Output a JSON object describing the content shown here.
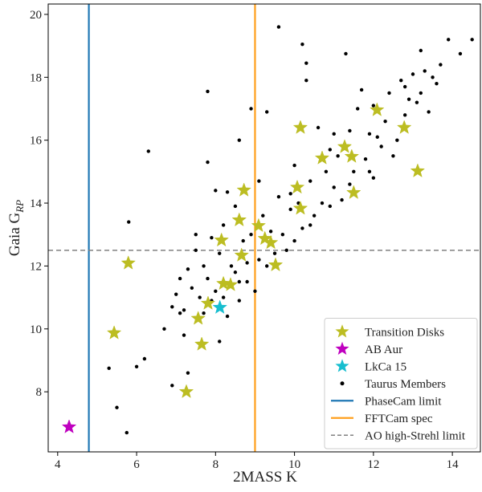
{
  "chart_data": {
    "type": "scatter",
    "xlabel": "2MASS K",
    "ylabel": "Gaia G",
    "ylabel_sub": "RP",
    "xlim": [
      3.76,
      14.71
    ],
    "ylim": [
      6.09,
      20.33
    ],
    "xticks": [
      4,
      6,
      8,
      10,
      12,
      14
    ],
    "yticks": [
      8,
      10,
      12,
      14,
      16,
      18,
      20
    ],
    "legend": "lower right",
    "series": [
      {
        "name": "Transition Disks",
        "color": "#bcbd22",
        "marker": "star",
        "x": [
          5.79,
          5.43,
          7.26,
          7.65,
          7.56,
          7.81,
          8.15,
          8.2,
          8.38,
          8.6,
          8.66,
          8.72,
          9.09,
          9.25,
          9.4,
          9.52,
          10.07,
          10.15,
          10.15,
          10.7,
          11.27,
          11.45,
          11.5,
          12.09,
          12.78,
          13.12
        ],
        "y": [
          12.09,
          9.87,
          8.0,
          9.51,
          10.33,
          10.81,
          12.82,
          11.44,
          11.4,
          13.46,
          12.34,
          14.41,
          13.28,
          12.87,
          12.74,
          12.03,
          14.5,
          13.83,
          16.4,
          15.43,
          15.79,
          15.48,
          14.33,
          16.96,
          16.4,
          15.02
        ]
      },
      {
        "name": "AB Aur",
        "color": "#bf00bf",
        "marker": "star",
        "x": [
          4.29
        ],
        "y": [
          6.88
        ]
      },
      {
        "name": "LkCa 15",
        "color": "#17becf",
        "marker": "star",
        "x": [
          8.11
        ],
        "y": [
          10.68
        ]
      },
      {
        "name": "Taurus Members",
        "color": "#000000",
        "marker": "dot",
        "x": [
          5.3,
          5.5,
          5.75,
          5.8,
          6.0,
          6.2,
          6.3,
          6.7,
          6.9,
          6.9,
          7.0,
          7.1,
          7.1,
          7.2,
          7.3,
          7.3,
          7.4,
          7.5,
          7.5,
          7.6,
          7.7,
          7.7,
          7.8,
          7.8,
          7.8,
          7.9,
          8.0,
          8.0,
          8.1,
          8.1,
          8.2,
          8.2,
          8.3,
          8.3,
          8.4,
          8.5,
          8.5,
          8.6,
          8.6,
          8.7,
          8.8,
          8.9,
          8.9,
          9.0,
          9.1,
          9.1,
          9.2,
          9.3,
          9.4,
          9.5,
          9.6,
          9.6,
          9.7,
          9.8,
          9.9,
          10.0,
          10.0,
          10.1,
          10.2,
          10.2,
          10.3,
          10.3,
          10.4,
          10.5,
          10.6,
          10.7,
          10.8,
          10.9,
          11.0,
          11.0,
          11.1,
          11.2,
          11.3,
          11.4,
          11.5,
          11.6,
          11.7,
          11.8,
          11.9,
          12.0,
          12.0,
          12.2,
          12.3,
          12.4,
          12.5,
          12.6,
          12.7,
          12.8,
          12.9,
          13.0,
          13.1,
          13.2,
          13.3,
          13.4,
          13.5,
          13.6,
          13.7,
          13.9,
          14.2,
          14.5,
          13.2,
          11.9,
          10.9,
          9.9,
          8.8,
          7.9,
          7.2,
          8.6,
          9.3,
          10.4,
          11.4,
          12.1,
          12.8
        ],
        "y": [
          8.75,
          7.5,
          6.7,
          13.4,
          8.8,
          9.05,
          15.65,
          10.0,
          8.2,
          10.7,
          11.1,
          10.5,
          11.6,
          9.8,
          8.6,
          11.9,
          11.3,
          12.5,
          13.0,
          11.0,
          10.5,
          12.0,
          17.55,
          15.3,
          11.6,
          12.9,
          11.2,
          14.4,
          9.6,
          12.4,
          11.0,
          13.3,
          14.35,
          10.4,
          12.0,
          11.8,
          13.9,
          16.0,
          11.5,
          12.8,
          11.5,
          17.0,
          13.0,
          11.2,
          14.7,
          12.2,
          13.6,
          16.9,
          13.1,
          12.4,
          19.6,
          14.2,
          13.0,
          12.5,
          13.8,
          15.2,
          12.8,
          14.0,
          19.05,
          13.2,
          18.45,
          17.9,
          14.7,
          13.6,
          16.4,
          14.0,
          15.0,
          13.9,
          16.2,
          14.5,
          15.5,
          14.1,
          18.75,
          16.3,
          15.0,
          17.0,
          17.6,
          15.4,
          16.2,
          17.1,
          14.8,
          15.8,
          16.6,
          17.5,
          15.5,
          16.0,
          17.9,
          16.8,
          17.3,
          18.1,
          17.2,
          18.85,
          18.2,
          16.9,
          18.0,
          17.8,
          18.4,
          19.2,
          18.75,
          19.2,
          17.5,
          15.0,
          15.7,
          14.3,
          12.1,
          10.9,
          10.6,
          10.9,
          12.0,
          13.3,
          14.6,
          16.1,
          17.7
        ]
      }
    ],
    "vlines": [
      {
        "name": "PhaseCam limit",
        "x": 4.79,
        "color": "#1f77b4"
      },
      {
        "name": "FFTCam spec",
        "x": 9.0,
        "color": "#ff9f1c"
      }
    ],
    "hlines": [
      {
        "name": "AO high-Strehl limit",
        "y": 12.5,
        "color": "#808080",
        "dashed": true
      }
    ]
  }
}
